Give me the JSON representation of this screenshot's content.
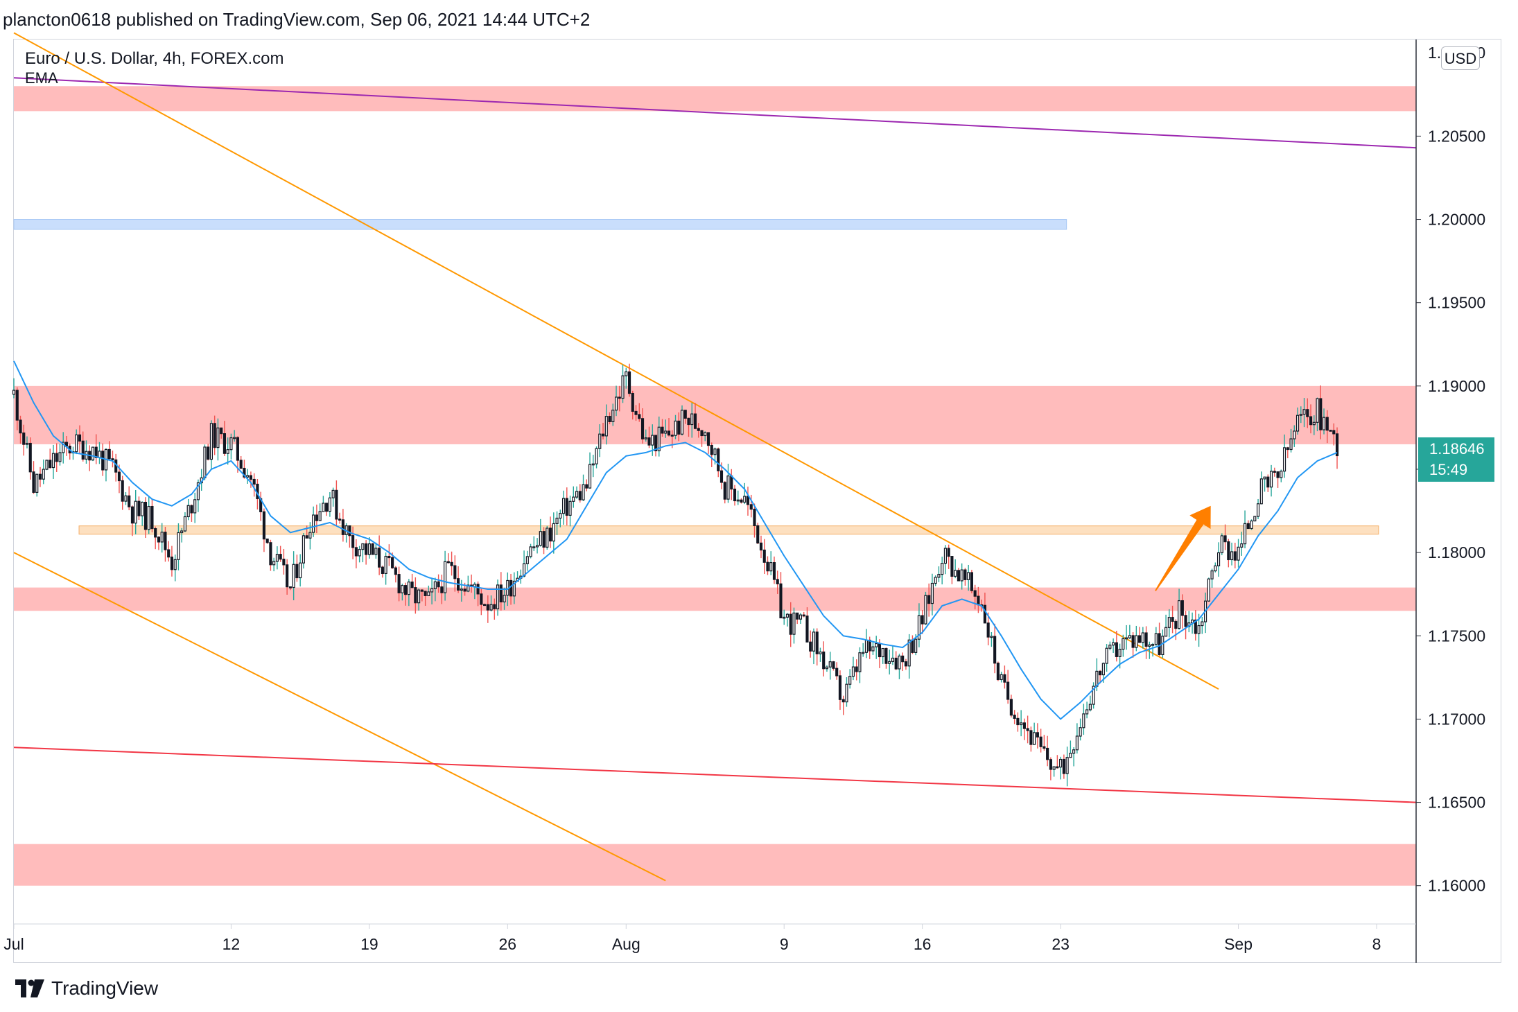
{
  "header": {
    "publish_info": "plancton0618 published on TradingView.com, Sep 06, 2021 14:44 UTC+2"
  },
  "legend": {
    "symbol": "Euro / U.S. Dollar, 4h, FOREX.com",
    "indicator": "EMA"
  },
  "currency_button": "USD",
  "price_tag": {
    "price": "1.18646",
    "countdown": "15:49"
  },
  "footer": {
    "brand": "TradingView"
  },
  "colors": {
    "up": "#26a69a",
    "down": "#ef5350",
    "candle_body": "#131722",
    "ema": "#2196f3",
    "red_zone": "#ffbcbc",
    "blue_zone": "#c9defc",
    "orange_zone": "#fde0c0",
    "orange_line": "#ff9800",
    "purple_line": "#9c27b0",
    "red_line": "#f23645"
  },
  "icons": {
    "footer_logo": "tradingview-logo-icon"
  },
  "chart_data": {
    "type": "candlestick",
    "title": "Euro / U.S. Dollar, 4h, FOREX.com",
    "ylim": [
      1.1577,
      1.2108
    ],
    "x_domain_days": [
      0,
      71
    ],
    "x_ticks": [
      {
        "label": "Jul",
        "day": 0
      },
      {
        "label": "12",
        "day": 11
      },
      {
        "label": "19",
        "day": 18
      },
      {
        "label": "26",
        "day": 25
      },
      {
        "label": "Aug",
        "day": 31
      },
      {
        "label": "9",
        "day": 39
      },
      {
        "label": "16",
        "day": 46
      },
      {
        "label": "23",
        "day": 53
      },
      {
        "label": "Sep",
        "day": 62
      },
      {
        "label": "8",
        "day": 69
      }
    ],
    "y_ticks": [
      "1.20500",
      "1.20000",
      "1.19500",
      "1.19000",
      "1.18500",
      "1.18000",
      "1.17500",
      "1.17000",
      "1.16500",
      "1.16000"
    ],
    "top_tick_partial": "1.21000",
    "last_price": 1.18646,
    "close_path": [
      [
        0,
        1.1895
      ],
      [
        1,
        1.184
      ],
      [
        2,
        1.1855
      ],
      [
        3,
        1.1865
      ],
      [
        4,
        1.1862
      ],
      [
        5,
        1.185
      ],
      [
        6,
        1.1825
      ],
      [
        7,
        1.182
      ],
      [
        8,
        1.1795
      ],
      [
        9,
        1.183
      ],
      [
        10,
        1.187
      ],
      [
        11,
        1.1865
      ],
      [
        12,
        1.1845
      ],
      [
        13,
        1.18
      ],
      [
        14,
        1.1778
      ],
      [
        15,
        1.182
      ],
      [
        16,
        1.1835
      ],
      [
        17,
        1.1808
      ],
      [
        18,
        1.18
      ],
      [
        19,
        1.179
      ],
      [
        20,
        1.1775
      ],
      [
        21,
        1.177
      ],
      [
        22,
        1.179
      ],
      [
        23,
        1.178
      ],
      [
        24,
        1.177
      ],
      [
        25,
        1.1778
      ],
      [
        26,
        1.18
      ],
      [
        27,
        1.181
      ],
      [
        28,
        1.1828
      ],
      [
        29,
        1.184
      ],
      [
        30,
        1.188
      ],
      [
        31,
        1.1905
      ],
      [
        32,
        1.1865
      ],
      [
        33,
        1.187
      ],
      [
        34,
        1.188
      ],
      [
        35,
        1.1875
      ],
      [
        36,
        1.184
      ],
      [
        37,
        1.1832
      ],
      [
        38,
        1.18
      ],
      [
        39,
        1.176
      ],
      [
        40,
        1.1755
      ],
      [
        41,
        1.1735
      ],
      [
        42,
        1.1712
      ],
      [
        43,
        1.174
      ],
      [
        44,
        1.1742
      ],
      [
        45,
        1.1735
      ],
      [
        46,
        1.176
      ],
      [
        47,
        1.18
      ],
      [
        48,
        1.1785
      ],
      [
        49,
        1.177
      ],
      [
        50,
        1.172
      ],
      [
        51,
        1.17
      ],
      [
        52,
        1.168
      ],
      [
        53,
        1.1668
      ],
      [
        54,
        1.17
      ],
      [
        55,
        1.173
      ],
      [
        56,
        1.1745
      ],
      [
        57,
        1.175
      ],
      [
        58,
        1.1745
      ],
      [
        59,
        1.1765
      ],
      [
        60,
        1.1755
      ],
      [
        61,
        1.1805
      ],
      [
        62,
        1.18
      ],
      [
        63,
        1.1835
      ],
      [
        64,
        1.1845
      ],
      [
        65,
        1.1878
      ],
      [
        66,
        1.1885
      ],
      [
        67,
        1.1865
      ]
    ],
    "ema_path": [
      [
        0,
        1.1915
      ],
      [
        1,
        1.189
      ],
      [
        2,
        1.187
      ],
      [
        3,
        1.186
      ],
      [
        4,
        1.1858
      ],
      [
        5,
        1.1855
      ],
      [
        6,
        1.1842
      ],
      [
        7,
        1.1832
      ],
      [
        8,
        1.1828
      ],
      [
        9,
        1.1835
      ],
      [
        10,
        1.185
      ],
      [
        11,
        1.1855
      ],
      [
        12,
        1.1842
      ],
      [
        13,
        1.1822
      ],
      [
        14,
        1.1812
      ],
      [
        15,
        1.1815
      ],
      [
        16,
        1.1818
      ],
      [
        17,
        1.1812
      ],
      [
        18,
        1.1808
      ],
      [
        19,
        1.18
      ],
      [
        20,
        1.179
      ],
      [
        21,
        1.1785
      ],
      [
        22,
        1.1782
      ],
      [
        23,
        1.178
      ],
      [
        24,
        1.1778
      ],
      [
        25,
        1.1778
      ],
      [
        26,
        1.1788
      ],
      [
        27,
        1.1798
      ],
      [
        28,
        1.1808
      ],
      [
        29,
        1.1828
      ],
      [
        30,
        1.1848
      ],
      [
        31,
        1.1858
      ],
      [
        32,
        1.186
      ],
      [
        33,
        1.1864
      ],
      [
        34,
        1.1866
      ],
      [
        35,
        1.186
      ],
      [
        36,
        1.185
      ],
      [
        37,
        1.1838
      ],
      [
        38,
        1.1818
      ],
      [
        39,
        1.1798
      ],
      [
        40,
        1.178
      ],
      [
        41,
        1.1762
      ],
      [
        42,
        1.175
      ],
      [
        43,
        1.1748
      ],
      [
        44,
        1.1745
      ],
      [
        45,
        1.1743
      ],
      [
        46,
        1.1752
      ],
      [
        47,
        1.1768
      ],
      [
        48,
        1.1772
      ],
      [
        49,
        1.1768
      ],
      [
        50,
        1.175
      ],
      [
        51,
        1.173
      ],
      [
        52,
        1.1712
      ],
      [
        53,
        1.17
      ],
      [
        54,
        1.171
      ],
      [
        55,
        1.1722
      ],
      [
        56,
        1.1733
      ],
      [
        57,
        1.174
      ],
      [
        58,
        1.1744
      ],
      [
        59,
        1.1752
      ],
      [
        60,
        1.176
      ],
      [
        61,
        1.1775
      ],
      [
        62,
        1.179
      ],
      [
        63,
        1.181
      ],
      [
        64,
        1.1825
      ],
      [
        65,
        1.1845
      ],
      [
        66,
        1.1855
      ],
      [
        67,
        1.186
      ]
    ],
    "zones": [
      {
        "kind": "resistance",
        "from": 1.2065,
        "to": 1.208,
        "x0": 0,
        "x1": 71
      },
      {
        "kind": "target",
        "from": 1.1994,
        "to": 1.2,
        "x0": 0,
        "x1": 53.3
      },
      {
        "kind": "resistance",
        "from": 1.1865,
        "to": 1.19,
        "x0": 0,
        "x1": 71
      },
      {
        "kind": "support",
        "from": 1.1811,
        "to": 1.1816,
        "x0": 3.3,
        "x1": 69.1
      },
      {
        "kind": "support",
        "from": 1.1765,
        "to": 1.1779,
        "x0": 0,
        "x1": 71
      },
      {
        "kind": "support",
        "from": 1.16,
        "to": 1.1625,
        "x0": 0,
        "x1": 71
      }
    ],
    "trendlines": [
      {
        "name": "purple",
        "p1": [
          0,
          1.2085
        ],
        "p2": [
          71,
          1.2043
        ]
      },
      {
        "name": "orange-upper",
        "p1": [
          0,
          1.2112
        ],
        "p2": [
          61,
          1.1718
        ]
      },
      {
        "name": "orange-lower",
        "p1": [
          0,
          1.18
        ],
        "p2": [
          33,
          1.1603
        ]
      },
      {
        "name": "red",
        "p1": [
          0,
          1.1683
        ],
        "p2": [
          71,
          1.165
        ]
      }
    ],
    "arrow": {
      "from": [
        57.8,
        1.1777
      ],
      "to": [
        60.6,
        1.1828
      ]
    }
  }
}
